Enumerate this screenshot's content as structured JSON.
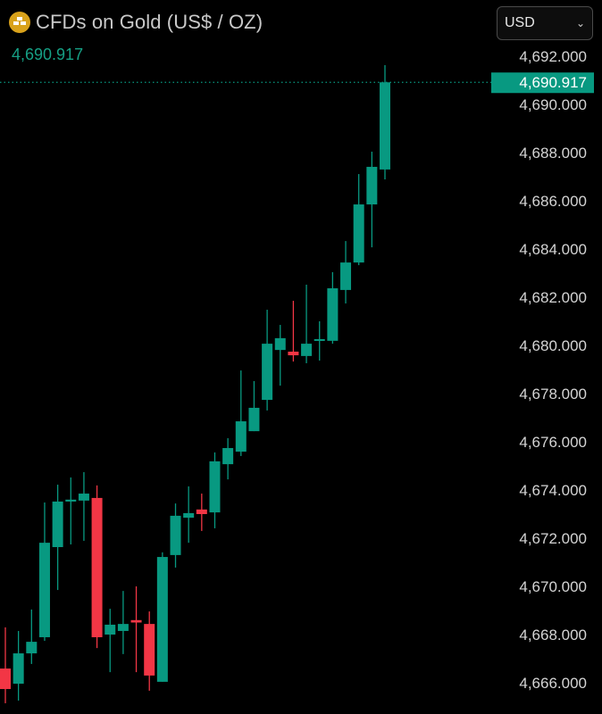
{
  "header": {
    "icon": "gold-bars-icon",
    "title": "CFDs on Gold (US$ / OZ)",
    "last_price": "4,690.917"
  },
  "currency_select": {
    "value": "USD",
    "icon": "chevron-down-icon"
  },
  "colors": {
    "up": "#089981",
    "down": "#f23645",
    "gold": "#d9a21b",
    "background": "#000000"
  },
  "chart_data": {
    "type": "candlestick",
    "y_axis_position": "right",
    "ylim": [
      4665,
      4692.5
    ],
    "y_ticks": [
      "4,692.000",
      "4,690.000",
      "4,688.000",
      "4,686.000",
      "4,684.000",
      "4,682.000",
      "4,680.000",
      "4,678.000",
      "4,676.000",
      "4,674.000",
      "4,672.000",
      "4,670.000",
      "4,668.000",
      "4,666.000"
    ],
    "current_price": {
      "value": 4690.917,
      "label": "4,690.917"
    },
    "candles": [
      {
        "o": 4666.59,
        "h": 4668.3,
        "l": 4665.15,
        "c": 4665.74
      },
      {
        "o": 4665.96,
        "h": 4668.15,
        "l": 4665.26,
        "c": 4667.22
      },
      {
        "o": 4667.22,
        "h": 4669.04,
        "l": 4666.78,
        "c": 4667.7
      },
      {
        "o": 4667.89,
        "h": 4673.48,
        "l": 4667.74,
        "c": 4671.81
      },
      {
        "o": 4671.63,
        "h": 4674.22,
        "l": 4669.85,
        "c": 4673.52
      },
      {
        "o": 4673.52,
        "h": 4674.52,
        "l": 4671.74,
        "c": 4673.6
      },
      {
        "o": 4673.56,
        "h": 4674.74,
        "l": 4671.89,
        "c": 4673.85
      },
      {
        "o": 4673.67,
        "h": 4674.19,
        "l": 4667.44,
        "c": 4667.89
      },
      {
        "o": 4668.0,
        "h": 4669.07,
        "l": 4666.44,
        "c": 4668.41
      },
      {
        "o": 4668.15,
        "h": 4669.81,
        "l": 4667.19,
        "c": 4668.44
      },
      {
        "o": 4668.6,
        "h": 4670.0,
        "l": 4666.44,
        "c": 4668.5
      },
      {
        "o": 4668.44,
        "h": 4668.96,
        "l": 4665.67,
        "c": 4666.3
      },
      {
        "o": 4666.04,
        "h": 4671.41,
        "l": 4666.04,
        "c": 4671.22
      },
      {
        "o": 4671.3,
        "h": 4673.44,
        "l": 4670.78,
        "c": 4672.93
      },
      {
        "o": 4672.85,
        "h": 4674.15,
        "l": 4671.81,
        "c": 4673.04
      },
      {
        "o": 4673.19,
        "h": 4673.85,
        "l": 4672.3,
        "c": 4673.0
      },
      {
        "o": 4673.07,
        "h": 4675.56,
        "l": 4672.41,
        "c": 4675.19
      },
      {
        "o": 4675.07,
        "h": 4676.15,
        "l": 4674.44,
        "c": 4675.74
      },
      {
        "o": 4675.59,
        "h": 4678.96,
        "l": 4675.41,
        "c": 4676.85
      },
      {
        "o": 4676.44,
        "h": 4678.52,
        "l": 4676.44,
        "c": 4677.41
      },
      {
        "o": 4677.74,
        "h": 4681.48,
        "l": 4677.3,
        "c": 4680.07
      },
      {
        "o": 4679.81,
        "h": 4680.85,
        "l": 4678.33,
        "c": 4680.3
      },
      {
        "o": 4679.74,
        "h": 4681.85,
        "l": 4679.33,
        "c": 4679.59
      },
      {
        "o": 4679.56,
        "h": 4682.52,
        "l": 4679.26,
        "c": 4680.07
      },
      {
        "o": 4680.2,
        "h": 4681.0,
        "l": 4679.37,
        "c": 4680.26
      },
      {
        "o": 4680.19,
        "h": 4683.04,
        "l": 4680.07,
        "c": 4682.37
      },
      {
        "o": 4682.3,
        "h": 4684.33,
        "l": 4681.74,
        "c": 4683.44
      },
      {
        "o": 4683.44,
        "h": 4687.11,
        "l": 4683.33,
        "c": 4685.85
      },
      {
        "o": 4685.85,
        "h": 4688.04,
        "l": 4684.07,
        "c": 4687.41
      },
      {
        "o": 4687.3,
        "h": 4691.63,
        "l": 4686.89,
        "c": 4690.917
      }
    ]
  }
}
